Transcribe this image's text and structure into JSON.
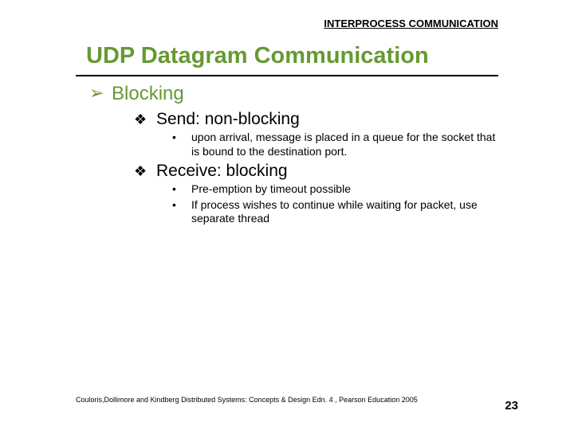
{
  "header": {
    "label": "INTERPROCESS COMMUNICATION"
  },
  "title": "UDP Datagram Communication",
  "content": {
    "h1": "Blocking",
    "send": {
      "label": "Send: non-blocking",
      "b1": "upon arrival, message is placed in a queue for the socket that is bound to the destination port."
    },
    "receive": {
      "label": "Receive: blocking",
      "b1": "Pre-emption by timeout possible",
      "b2": "If process wishes to continue while waiting for packet, use separate thread"
    }
  },
  "footer": {
    "citation": "Couloris,Dollimore and Kindberg  Distributed Systems: Concepts & Design  Edn. 4 , Pearson Education 2005",
    "page": "23"
  },
  "colors": {
    "accent": "#669933",
    "text": "#000000",
    "background": "#ffffff"
  }
}
